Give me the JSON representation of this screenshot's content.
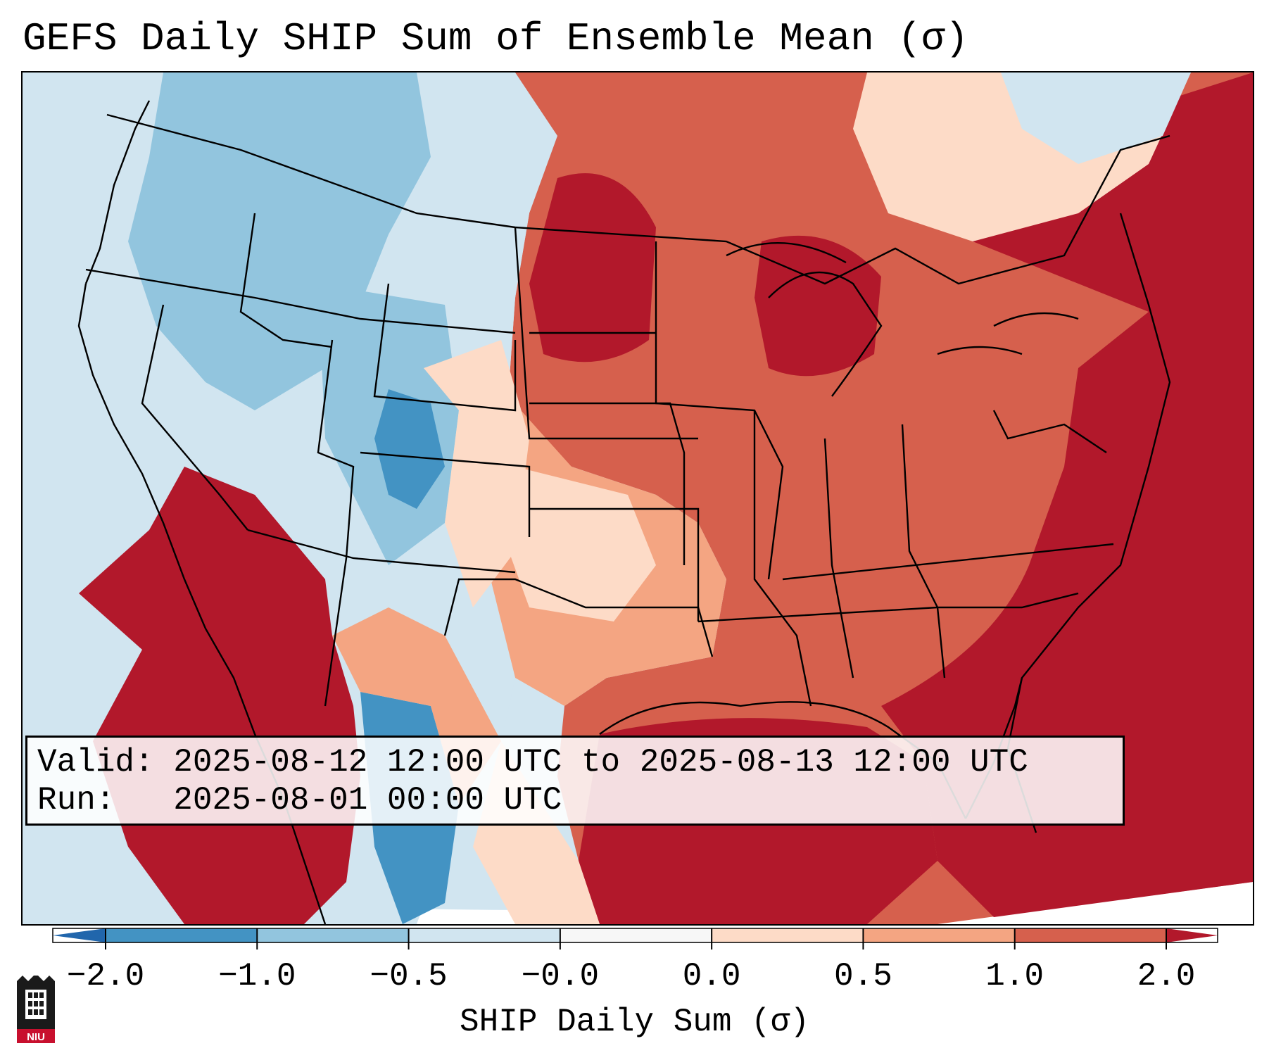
{
  "title": "GEFS Daily SHIP Sum of Ensemble Mean (σ)",
  "info": {
    "valid_label": "Valid:",
    "valid_value": "2025-08-12 12:00 UTC to 2025-08-13 12:00 UTC",
    "run_label": "Run:",
    "run_value": "2025-08-01 00:00 UTC"
  },
  "colorbar": {
    "label": "SHIP Daily Sum (σ)",
    "ticks": [
      "−2.0",
      "−1.0",
      "−0.5",
      "−0.0",
      "0.0",
      "0.5",
      "1.0",
      "2.0"
    ],
    "bins": [
      {
        "from": -2.0,
        "to": -1.0,
        "color": "#4393c3"
      },
      {
        "from": -1.0,
        "to": -0.5,
        "color": "#92c5de"
      },
      {
        "from": -0.5,
        "to": -0.0,
        "color": "#d1e5f0"
      },
      {
        "from": -0.0,
        "to": 0.0,
        "color": "#f7f7f7"
      },
      {
        "from": 0.0,
        "to": 0.5,
        "color": "#fddbc7"
      },
      {
        "from": 0.5,
        "to": 1.0,
        "color": "#f4a582"
      },
      {
        "from": 1.0,
        "to": 2.0,
        "color": "#d6604d"
      }
    ],
    "under_color": "#2166ac",
    "over_color": "#b2182b"
  },
  "map": {
    "region": "Contiguous United States",
    "field": "SHIP daily sum anomaly (σ)",
    "pattern": "Negative (blue) over the Pacific Northwest, Great Basin, Rockies, New Mexico and west Texas; strongly positive (dark red) over the Dakotas, Great Lakes, Gulf of Mexico, Atlantic coast, desert Southwest and northern Mexico"
  },
  "logo": {
    "text": "NIU",
    "name": "niu-logo"
  }
}
